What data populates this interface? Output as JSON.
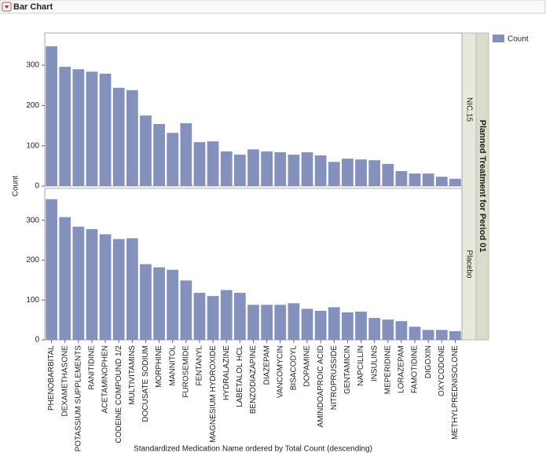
{
  "chart_data": {
    "type": "bar",
    "title": "Bar Chart",
    "x_label": "Standardized Medication Name ordered by Total Count (descending)",
    "y_label": "Count",
    "group_label": "Planned Treatment for Period 01",
    "legend": [
      "Count"
    ],
    "color": "#8591bd",
    "categories": [
      "PHENOBARBITAL",
      "DEXAMETHASONE",
      "POTASSIUM SUPPLEMENTS",
      "RANITIDINE",
      "ACETAMINOPHEN",
      "CODEINE COMPOUND 1/2",
      "MULTIVITAMINS",
      "DOCUSATE SODIUM",
      "MORPHINE",
      "MANNITOL",
      "FUROSEMIDE",
      "FENTANYL",
      "MAGNESIUM HYDROXIDE",
      "HYDRALAZINE",
      "LABETALOL HCL",
      "BENZODIAZAPINE",
      "DIAZEPAM",
      "VANCOMYCIN",
      "BISACODYL",
      "DOPAMINE",
      "AMINDOAPROIC ACID",
      "NITROPRUSSIDE",
      "GENTAMICIN",
      "NAPCILLIN",
      "INSULINS",
      "MEPERIDINE",
      "LORAZEPAM",
      "FAMOTIDINE",
      "DIGOXIN",
      "OXYCODONE",
      "METHYLPREDNISOLONE"
    ],
    "series": [
      {
        "name": "NIC.15",
        "values": [
          347,
          296,
          290,
          284,
          279,
          244,
          238,
          175,
          154,
          132,
          156,
          109,
          111,
          86,
          78,
          91,
          86,
          84,
          78,
          84,
          76,
          60,
          68,
          66,
          64,
          55,
          37,
          31,
          31,
          23,
          18
        ]
      },
      {
        "name": "Placebo",
        "values": [
          353,
          308,
          284,
          278,
          265,
          253,
          255,
          190,
          182,
          176,
          149,
          118,
          110,
          125,
          118,
          88,
          88,
          88,
          92,
          78,
          73,
          82,
          69,
          71,
          55,
          51,
          47,
          33,
          25,
          25,
          22
        ]
      }
    ],
    "ylim": [
      0,
      380
    ],
    "yticks": [
      0,
      100,
      200,
      300
    ]
  }
}
